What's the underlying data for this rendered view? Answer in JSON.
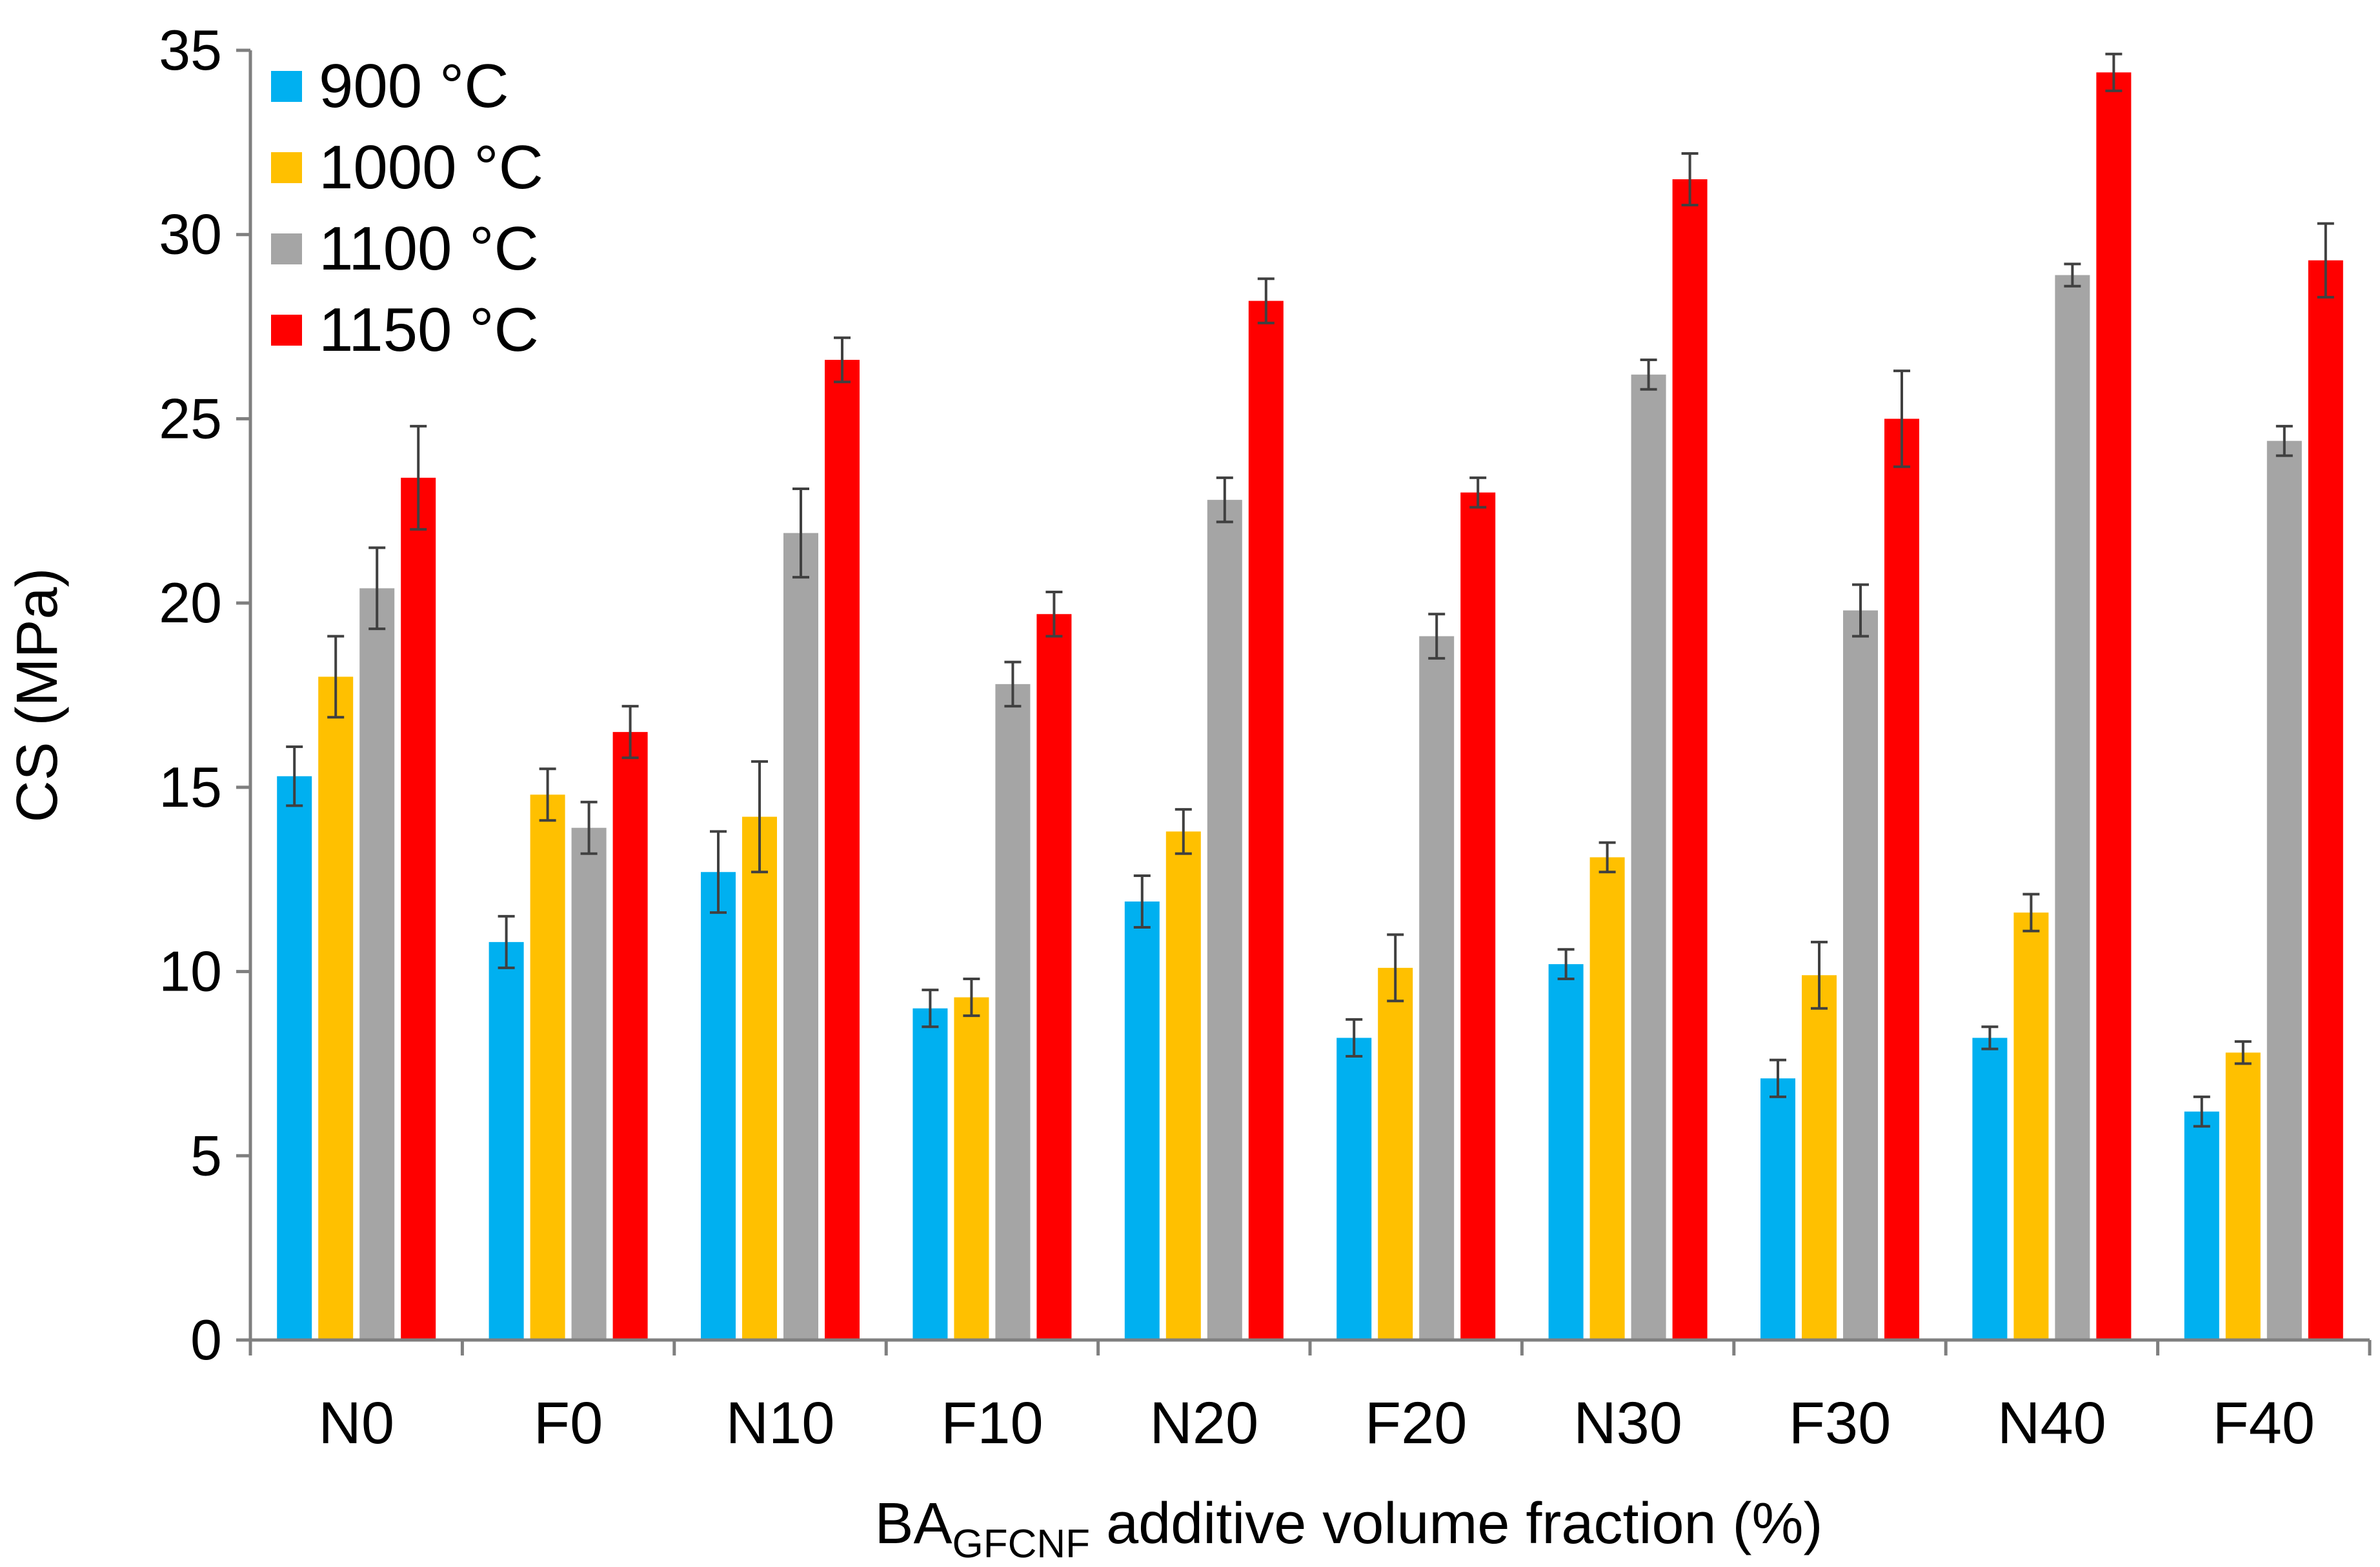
{
  "chart_data": {
    "type": "bar",
    "title": "",
    "xlabel_main": "BA",
    "xlabel_subscript": "GFCNF",
    "xlabel_rest": " additive volume fraction (%)",
    "ylabel": "CS (MPa)",
    "ylim": [
      0,
      35
    ],
    "yticks": [
      0,
      5,
      10,
      15,
      20,
      25,
      30,
      35
    ],
    "ytick_labels": [
      "0",
      "5",
      "10",
      "15",
      "20",
      "25",
      "30",
      "35"
    ],
    "grid": false,
    "legend_position": "top-left",
    "categories": [
      "N0",
      "F0",
      "N10",
      "F10",
      "N20",
      "F20",
      "N30",
      "F30",
      "N40",
      "F40"
    ],
    "series": [
      {
        "name": "900 °C",
        "color": "#00b0f0",
        "values": [
          15.3,
          10.8,
          12.7,
          9.0,
          11.9,
          8.2,
          10.2,
          7.1,
          8.2,
          6.2
        ],
        "errors": [
          0.8,
          0.7,
          1.1,
          0.5,
          0.7,
          0.5,
          0.4,
          0.5,
          0.3,
          0.4
        ]
      },
      {
        "name": "1000 °C",
        "color": "#ffc000",
        "values": [
          18.0,
          14.8,
          14.2,
          9.3,
          13.8,
          10.1,
          13.1,
          9.9,
          11.6,
          7.8
        ],
        "errors": [
          1.1,
          0.7,
          1.5,
          0.5,
          0.6,
          0.9,
          0.4,
          0.9,
          0.5,
          0.3
        ]
      },
      {
        "name": "1100 °C",
        "color": "#a5a5a5",
        "values": [
          20.4,
          13.9,
          21.9,
          17.8,
          22.8,
          19.1,
          26.2,
          19.8,
          28.9,
          24.4
        ],
        "errors": [
          1.1,
          0.7,
          1.2,
          0.6,
          0.6,
          0.6,
          0.4,
          0.7,
          0.3,
          0.4
        ]
      },
      {
        "name": "1150 °C",
        "color": "#ff0000",
        "values": [
          23.4,
          16.5,
          26.6,
          19.7,
          28.2,
          23.0,
          31.5,
          25.0,
          34.4,
          29.3
        ],
        "errors": [
          1.4,
          0.7,
          0.6,
          0.6,
          0.6,
          0.4,
          0.7,
          1.3,
          0.5,
          1.0
        ]
      }
    ]
  }
}
